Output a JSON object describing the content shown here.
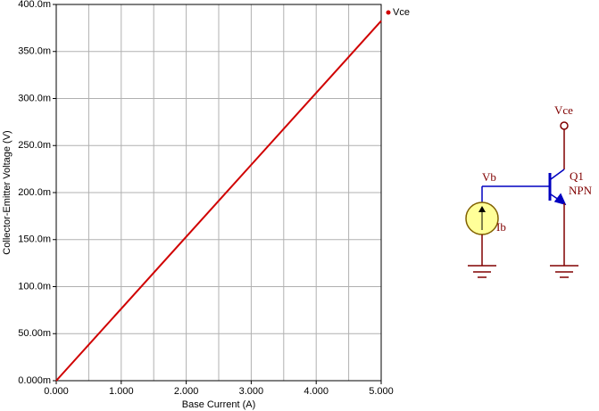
{
  "chart_data": {
    "type": "line",
    "xlabel": "Base Current (A)",
    "ylabel": "Collector-Emitter Voltage (V)",
    "x": [
      0,
      1,
      2,
      3,
      4,
      5
    ],
    "series": [
      {
        "name": "Vce",
        "color": "#d00000",
        "values": [
          0,
          0.0765,
          0.153,
          0.2295,
          0.306,
          0.3825
        ]
      }
    ],
    "xlim": [
      0,
      5
    ],
    "ylim": [
      0,
      0.4
    ],
    "xticks": [
      {
        "value": 0,
        "label": "0.000"
      },
      {
        "value": 1,
        "label": "1.000"
      },
      {
        "value": 2,
        "label": "2.000"
      },
      {
        "value": 3,
        "label": "3.000"
      },
      {
        "value": 4,
        "label": "4.000"
      },
      {
        "value": 5,
        "label": "5.000"
      }
    ],
    "xminorticks": [
      0.5,
      1.5,
      2.5,
      3.5,
      4.5
    ],
    "yticks": [
      {
        "value": 0,
        "label": "0.000m"
      },
      {
        "value": 0.05,
        "label": "50.00m"
      },
      {
        "value": 0.1,
        "label": "100.0m"
      },
      {
        "value": 0.15,
        "label": "150.0m"
      },
      {
        "value": 0.2,
        "label": "200.0m"
      },
      {
        "value": 0.25,
        "label": "250.0m"
      },
      {
        "value": 0.3,
        "label": "300.0m"
      },
      {
        "value": 0.35,
        "label": "350.0m"
      },
      {
        "value": 0.4,
        "label": "400.0m"
      }
    ],
    "grid": true
  },
  "schematic": {
    "output_node": "Vce",
    "base_node": "Vb",
    "transistor_name": "Q1",
    "transistor_type": "NPN",
    "source_name": "Ib"
  }
}
